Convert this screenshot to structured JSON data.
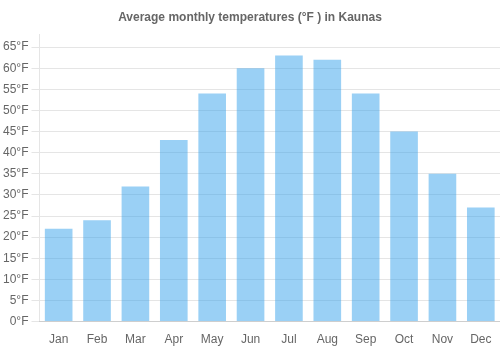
{
  "chart_data": {
    "type": "bar",
    "title": "Average monthly temperatures (°F ) in Kaunas",
    "categories": [
      "Jan",
      "Feb",
      "Mar",
      "Apr",
      "May",
      "Jun",
      "Jul",
      "Aug",
      "Sep",
      "Oct",
      "Nov",
      "Dec"
    ],
    "values": [
      22,
      24,
      32,
      43,
      54,
      60,
      63,
      62,
      54,
      45,
      35,
      27
    ],
    "ylim": [
      0,
      68
    ],
    "yticks": [
      {
        "value": 0,
        "label": "0°F"
      },
      {
        "value": 5,
        "label": "5°F"
      },
      {
        "value": 10,
        "label": "10°F"
      },
      {
        "value": 15,
        "label": "15°F"
      },
      {
        "value": 20,
        "label": "20°F"
      },
      {
        "value": 25,
        "label": "25°F"
      },
      {
        "value": 30,
        "label": "30°F"
      },
      {
        "value": 35,
        "label": "35°F"
      },
      {
        "value": 40,
        "label": "40°F"
      },
      {
        "value": 45,
        "label": "45°F"
      },
      {
        "value": 50,
        "label": "50°F"
      },
      {
        "value": 55,
        "label": "55°F"
      },
      {
        "value": 60,
        "label": "60°F"
      },
      {
        "value": 65,
        "label": "65°F"
      }
    ],
    "grid": true
  }
}
